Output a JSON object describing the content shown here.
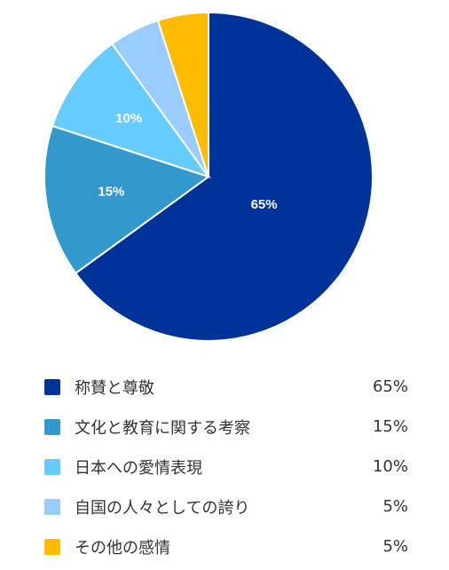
{
  "chart_data": {
    "type": "pie",
    "categories": [
      "称賛と尊敬",
      "文化と教育に関する考察",
      "日本への愛情表現",
      "自国の人々としての誇り",
      "その他の感情"
    ],
    "values": [
      65,
      15,
      10,
      5,
      5
    ],
    "value_labels": [
      "65%",
      "15%",
      "10%",
      "5%",
      "5%"
    ],
    "slice_labels": [
      "65%",
      "15%",
      "10%",
      "",
      ""
    ],
    "colors": [
      "#003399",
      "#3399CC",
      "#66CCFF",
      "#99CCFF",
      "#FFBB00"
    ],
    "start": "12 o'clock",
    "direction": "clockwise",
    "legend_position": "bottom"
  }
}
